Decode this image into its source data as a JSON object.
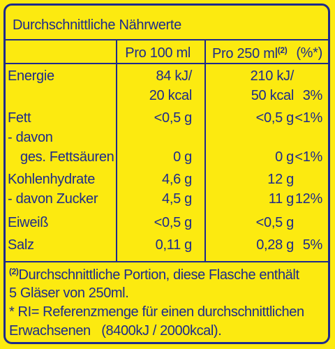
{
  "title": "Durchschnittliche Nährwerte",
  "header": {
    "per100": "Pro 100 ml",
    "per250": "Pro 250 ml",
    "per250_note": "(2)",
    "ri": "(%*)"
  },
  "rows": [
    {
      "name": [
        "Energie",
        ""
      ],
      "per100": [
        "84 kJ/",
        "20 kcal"
      ],
      "per250": [
        "210 kJ/",
        "50 kcal"
      ],
      "ri": [
        "",
        "3%"
      ]
    },
    {
      "name": [
        "Fett"
      ],
      "per100": [
        "<0,5 g"
      ],
      "per250": [
        "<0,5 g"
      ],
      "ri": [
        "<1%"
      ]
    },
    {
      "name": [
        "- davon",
        "ges. Fettsäuren"
      ],
      "per100": [
        "",
        "0 g"
      ],
      "per250": [
        "",
        "0 g"
      ],
      "ri": [
        "",
        "<1%"
      ]
    },
    {
      "name": [
        "Kohlenhydrate"
      ],
      "per100": [
        "4,6 g"
      ],
      "per250": [
        "12 g"
      ],
      "ri": [
        ""
      ]
    },
    {
      "name": [
        "- davon Zucker"
      ],
      "per100": [
        "4,5 g"
      ],
      "per250": [
        "11 g"
      ],
      "ri": [
        "12%"
      ]
    },
    {
      "name": [
        "Eiweiß"
      ],
      "per100": [
        "<0,5 g"
      ],
      "per250": [
        "<0,5 g"
      ],
      "ri": [
        ""
      ]
    },
    {
      "name": [
        "Salz"
      ],
      "per100": [
        "0,11 g"
      ],
      "per250": [
        "0,28 g"
      ],
      "ri": [
        "5%"
      ]
    }
  ],
  "footnotes": {
    "note2_marker": "(2)",
    "note2_line1": "Durchschnittliche Portion, diese Flasche enthält",
    "note2_line2": "5 Gläser von 250ml.",
    "ri_line1": "* RI= Referenzmenge für einen durchschnittlichen",
    "ri_line2": "Erwachsenen   (8400kJ / 2000kcal)."
  },
  "colors": {
    "background": "#fcea10",
    "ink": "#1d2a8c"
  }
}
